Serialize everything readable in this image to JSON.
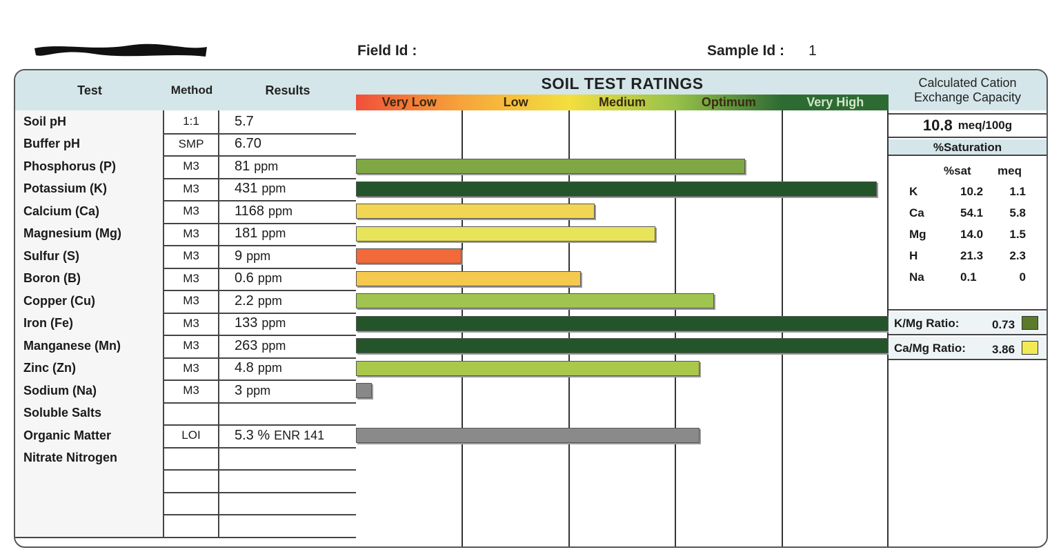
{
  "header": {
    "field_id_label": "Field Id :",
    "sample_id_label": "Sample Id :",
    "sample_id_value": "1"
  },
  "columns": {
    "test": "Test",
    "method": "Method",
    "results": "Results"
  },
  "ratings": {
    "title": "SOIL TEST RATINGS",
    "scale": [
      {
        "label": "Very Low",
        "color": "#f0503a"
      },
      {
        "label": "Low",
        "color": "#f7a43a"
      },
      {
        "label": "Medium",
        "color": "#f3df3e"
      },
      {
        "label": "Optimum",
        "color": "#98c14a"
      },
      {
        "label": "Very High",
        "color": "#2d6b33"
      }
    ]
  },
  "rows": [
    {
      "test": "Soil pH",
      "method": "1:1",
      "value": "5.7",
      "unit": "",
      "bar": null,
      "color": ""
    },
    {
      "test": "Buffer pH",
      "method": "SMP",
      "value": "6.70",
      "unit": "",
      "bar": null,
      "color": ""
    },
    {
      "test": "Phosphorus (P)",
      "method": "M3",
      "value": "81",
      "unit": "ppm",
      "bar": 0.73,
      "color": "#7fa844"
    },
    {
      "test": "Potassium (K)",
      "method": "M3",
      "value": "431",
      "unit": "ppm",
      "bar": 0.978,
      "color": "#24552a"
    },
    {
      "test": "Calcium (Ca)",
      "method": "M3",
      "value": "1168",
      "unit": "ppm",
      "bar": 0.448,
      "color": "#f2d552"
    },
    {
      "test": "Magnesium (Mg)",
      "method": "M3",
      "value": "181",
      "unit": "ppm",
      "bar": 0.562,
      "color": "#e8e45a"
    },
    {
      "test": "Sulfur (S)",
      "method": "M3",
      "value": "9",
      "unit": "ppm",
      "bar": 0.198,
      "color": "#f26a3a"
    },
    {
      "test": "Boron (B)",
      "method": "M3",
      "value": "0.6",
      "unit": "ppm",
      "bar": 0.422,
      "color": "#f5c84e"
    },
    {
      "test": "Copper (Cu)",
      "method": "M3",
      "value": "2.2",
      "unit": "ppm",
      "bar": 0.672,
      "color": "#9fc44f"
    },
    {
      "test": "Iron (Fe)",
      "method": "M3",
      "value": "133",
      "unit": "ppm",
      "bar": 1.0,
      "color": "#24552a"
    },
    {
      "test": "Manganese (Mn)",
      "method": "M3",
      "value": "263",
      "unit": "ppm",
      "bar": 1.0,
      "color": "#24552a"
    },
    {
      "test": "Zinc (Zn)",
      "method": "M3",
      "value": "4.8",
      "unit": "ppm",
      "bar": 0.645,
      "color": "#aac84a"
    },
    {
      "test": "Sodium (Na)",
      "method": "M3",
      "value": "3",
      "unit": "ppm",
      "bar": 0.03,
      "color": "#888888"
    },
    {
      "test": "Soluble Salts",
      "method": "",
      "value": "",
      "unit": "",
      "bar": null,
      "color": ""
    },
    {
      "test": "Organic Matter",
      "method": "LOI",
      "value": "5.3 %",
      "unit": "ENR 141",
      "bar": 0.645,
      "color": "#8a8a8a"
    },
    {
      "test": "Nitrate Nitrogen",
      "method": "",
      "value": "",
      "unit": "",
      "bar": null,
      "color": ""
    },
    {
      "test": "",
      "method": "",
      "value": "",
      "unit": "",
      "bar": null,
      "color": ""
    },
    {
      "test": "",
      "method": "",
      "value": "",
      "unit": "",
      "bar": null,
      "color": ""
    },
    {
      "test": "",
      "method": "",
      "value": "",
      "unit": "",
      "bar": null,
      "color": ""
    }
  ],
  "cec": {
    "title_line1": "Calculated Cation",
    "title_line2": "Exchange Capacity",
    "value": "10.8",
    "unit": "meq/100g",
    "saturation_title": "%Saturation",
    "col_sat": "%sat",
    "col_meq": "meq",
    "rows": [
      {
        "ion": "K",
        "sat": "10.2",
        "meq": "1.1"
      },
      {
        "ion": "Ca",
        "sat": "54.1",
        "meq": "5.8"
      },
      {
        "ion": "Mg",
        "sat": "14.0",
        "meq": "1.5"
      },
      {
        "ion": "H",
        "sat": "21.3",
        "meq": "2.3"
      },
      {
        "ion": "Na",
        "sat": "0.1",
        "meq": "0"
      }
    ],
    "ratios": [
      {
        "label": "K/Mg Ratio:",
        "value": "0.73",
        "color": "#5b7a2c"
      },
      {
        "label": "Ca/Mg Ratio:",
        "value": "3.86",
        "color": "#f2ea54"
      }
    ]
  }
}
